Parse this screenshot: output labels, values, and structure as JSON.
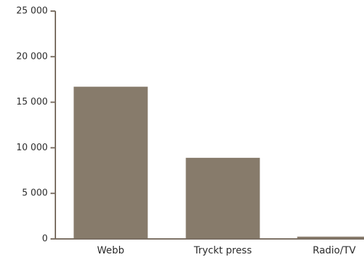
{
  "chart_data": {
    "type": "bar",
    "categories": [
      "Webb",
      "Tryckt press",
      "Radio/TV"
    ],
    "values": [
      16700,
      8900,
      250
    ],
    "ylim": [
      0,
      25000
    ],
    "yticks": [
      0,
      5000,
      10000,
      15000,
      20000,
      25000
    ],
    "ytick_labels": [
      "0",
      "5 000",
      "10 000",
      "15 000",
      "20 000",
      "25 000"
    ],
    "title": "",
    "xlabel": "",
    "ylabel": "",
    "grid": false,
    "legend": "none",
    "colors": {
      "bar": "#877b6b",
      "axis": "#7a6e62",
      "text": "#2b2b2b"
    }
  }
}
